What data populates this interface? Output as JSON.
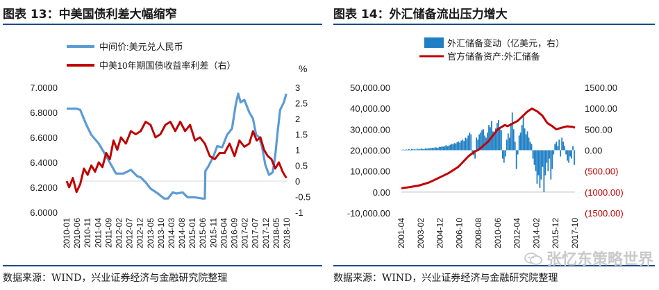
{
  "figures": [
    {
      "title": "图表 13：中美国债利差大幅缩窄",
      "source": "数据来源：WIND，兴业证券经济与金融研究院整理"
    },
    {
      "title": "图表 14：外汇储备流出压力增大",
      "source": "数据来源：WIND，兴业证券经济与金融研究院整理"
    }
  ],
  "watermark": {
    "text": "张忆东策略世界",
    "icon": "wechat-icon"
  },
  "colors": {
    "blue": "#5b9bd5",
    "darkred": "#c00000",
    "bar_blue": "#1f7fc4",
    "rule": "#1c4a8a",
    "axis_text": "#1a1a1a",
    "right_axis_red": "#c00000"
  },
  "chart_data": [
    {
      "type": "line",
      "title": "中美国债利差大幅缩窄",
      "legend": [
        "中间价:美元兑人民币",
        "中美10年期国债收益率利差（右）"
      ],
      "left_axis": {
        "ticks": [
          "7.0000",
          "6.8000",
          "6.6000",
          "6.4000",
          "6.2000",
          "6.0000"
        ],
        "range": [
          6.0,
          7.0
        ]
      },
      "right_axis": {
        "unit": "%",
        "ticks": [
          "3",
          "2.5",
          "2",
          "1.5",
          "1",
          "0.5",
          "0",
          "-0.5",
          "-1"
        ],
        "range": [
          -1,
          3
        ]
      },
      "x_labels": [
        "2010-01",
        "2010-06",
        "2010-11",
        "2011-04",
        "2011-09",
        "2012-02",
        "2012-07",
        "2012-12",
        "2013-05",
        "2013-10",
        "2014-03",
        "2014-08",
        "2015-01",
        "2015-06",
        "2015-11",
        "2016-04",
        "2016-09",
        "2017-02",
        "2017-07",
        "2017-12",
        "2018-05",
        "2018-10"
      ],
      "series": [
        {
          "name": "中间价:美元兑人民币",
          "axis": "left",
          "color": "#5b9bd5",
          "points": [
            [
              2010.0,
              6.83
            ],
            [
              2010.4,
              6.83
            ],
            [
              2010.55,
              6.82
            ],
            [
              2010.8,
              6.7
            ],
            [
              2011.0,
              6.62
            ],
            [
              2011.3,
              6.55
            ],
            [
              2011.6,
              6.45
            ],
            [
              2011.8,
              6.38
            ],
            [
              2012.0,
              6.31
            ],
            [
              2012.3,
              6.31
            ],
            [
              2012.6,
              6.34
            ],
            [
              2012.85,
              6.29
            ],
            [
              2013.0,
              6.28
            ],
            [
              2013.2,
              6.24
            ],
            [
              2013.4,
              6.19
            ],
            [
              2013.7,
              6.15
            ],
            [
              2013.95,
              6.11
            ],
            [
              2014.1,
              6.11
            ],
            [
              2014.3,
              6.16
            ],
            [
              2014.45,
              6.15
            ],
            [
              2014.7,
              6.16
            ],
            [
              2014.9,
              6.12
            ],
            [
              2015.2,
              6.12
            ],
            [
              2015.5,
              6.11
            ],
            [
              2015.6,
              6.11
            ],
            [
              2015.62,
              6.33
            ],
            [
              2015.75,
              6.37
            ],
            [
              2015.95,
              6.45
            ],
            [
              2016.1,
              6.53
            ],
            [
              2016.3,
              6.52
            ],
            [
              2016.5,
              6.62
            ],
            [
              2016.7,
              6.67
            ],
            [
              2016.85,
              6.86
            ],
            [
              2016.95,
              6.95
            ],
            [
              2017.05,
              6.88
            ],
            [
              2017.2,
              6.9
            ],
            [
              2017.4,
              6.8
            ],
            [
              2017.55,
              6.75
            ],
            [
              2017.68,
              6.62
            ],
            [
              2017.8,
              6.6
            ],
            [
              2017.92,
              6.52
            ],
            [
              2018.05,
              6.38
            ],
            [
              2018.2,
              6.3
            ],
            [
              2018.35,
              6.32
            ],
            [
              2018.45,
              6.45
            ],
            [
              2018.55,
              6.65
            ],
            [
              2018.65,
              6.82
            ],
            [
              2018.8,
              6.88
            ],
            [
              2018.9,
              6.95
            ]
          ]
        },
        {
          "name": "中美10年期国债收益率利差（右）",
          "axis": "right",
          "color": "#c00000",
          "points": [
            [
              2010.0,
              0.0
            ],
            [
              2010.1,
              -0.2
            ],
            [
              2010.25,
              0.1
            ],
            [
              2010.4,
              -0.35
            ],
            [
              2010.55,
              -0.1
            ],
            [
              2010.7,
              0.4
            ],
            [
              2010.85,
              0.2
            ],
            [
              2011.0,
              0.5
            ],
            [
              2011.15,
              0.3
            ],
            [
              2011.3,
              0.6
            ],
            [
              2011.45,
              0.45
            ],
            [
              2011.6,
              0.9
            ],
            [
              2011.75,
              0.7
            ],
            [
              2011.9,
              1.3
            ],
            [
              2012.05,
              1.0
            ],
            [
              2012.2,
              1.4
            ],
            [
              2012.4,
              1.2
            ],
            [
              2012.6,
              1.6
            ],
            [
              2012.8,
              1.5
            ],
            [
              2013.0,
              1.6
            ],
            [
              2013.2,
              1.9
            ],
            [
              2013.4,
              1.8
            ],
            [
              2013.6,
              1.4
            ],
            [
              2013.8,
              1.5
            ],
            [
              2014.0,
              1.8
            ],
            [
              2014.2,
              1.9
            ],
            [
              2014.4,
              1.6
            ],
            [
              2014.6,
              1.9
            ],
            [
              2014.8,
              1.6
            ],
            [
              2015.0,
              1.8
            ],
            [
              2015.2,
              1.3
            ],
            [
              2015.4,
              1.4
            ],
            [
              2015.6,
              1.2
            ],
            [
              2015.8,
              0.8
            ],
            [
              2016.0,
              0.7
            ],
            [
              2016.2,
              0.9
            ],
            [
              2016.4,
              0.9
            ],
            [
              2016.6,
              1.2
            ],
            [
              2016.8,
              0.8
            ],
            [
              2017.0,
              1.3
            ],
            [
              2017.2,
              1.1
            ],
            [
              2017.4,
              1.2
            ],
            [
              2017.55,
              1.6
            ],
            [
              2017.7,
              1.3
            ],
            [
              2017.85,
              1.4
            ],
            [
              2018.0,
              1.0
            ],
            [
              2018.15,
              0.8
            ],
            [
              2018.3,
              0.7
            ],
            [
              2018.45,
              0.4
            ],
            [
              2018.6,
              0.6
            ],
            [
              2018.75,
              0.3
            ],
            [
              2018.9,
              0.1
            ]
          ]
        }
      ]
    },
    {
      "type": "bar+line",
      "title": "外汇储备流出压力增大",
      "legend": [
        "外汇储备变动（亿美元，右）",
        "官方储备资产:外汇储备"
      ],
      "left_axis": {
        "ticks": [
          "50,000.00",
          "40,000.00",
          "30,000.00",
          "20,000.00",
          "10,000.00",
          "0.00",
          "-10,000.00"
        ],
        "range": [
          -10000,
          50000
        ]
      },
      "right_axis": {
        "ticks": [
          "1500.00",
          "1000.00",
          "500.00",
          "0.00",
          "(500.00)",
          "(1000.00)",
          "(1500.00)"
        ],
        "range": [
          -1500,
          1500
        ]
      },
      "x_labels": [
        "2001-04",
        "2003-02",
        "2004-12",
        "2006-10",
        "2008-08",
        "2010-06",
        "2012-04",
        "2014-02",
        "2015-12",
        "2017-10"
      ],
      "series": [
        {
          "name": "官方储备资产:外汇储备",
          "axis": "left",
          "color": "#c00000",
          "points": [
            [
              2001.25,
              1850
            ],
            [
              2002.0,
              2300
            ],
            [
              2003.0,
              3100
            ],
            [
              2004.0,
              4500
            ],
            [
              2005.0,
              6700
            ],
            [
              2006.0,
              9000
            ],
            [
              2007.0,
              12000
            ],
            [
              2008.0,
              17000
            ],
            [
              2008.7,
              19500
            ],
            [
              2009.0,
              20000
            ],
            [
              2010.0,
              24000
            ],
            [
              2011.0,
              30000
            ],
            [
              2011.7,
              32000
            ],
            [
              2012.0,
              31500
            ],
            [
              2013.0,
              34000
            ],
            [
              2014.0,
              38500
            ],
            [
              2014.45,
              39900
            ],
            [
              2015.0,
              38500
            ],
            [
              2015.5,
              36500
            ],
            [
              2016.0,
              33000
            ],
            [
              2016.5,
              31500
            ],
            [
              2016.9,
              30000
            ],
            [
              2017.5,
              30800
            ],
            [
              2018.0,
              31400
            ],
            [
              2018.5,
              31200
            ],
            [
              2018.8,
              30800
            ]
          ]
        },
        {
          "name": "外汇储备变动（亿美元，右）",
          "axis": "right",
          "color": "#1f7fc4",
          "type": "bar",
          "x_range": [
            2001.25,
            2018.8
          ],
          "values": [
            10,
            15,
            5,
            20,
            12,
            25,
            8,
            30,
            18,
            22,
            15,
            35,
            20,
            28,
            40,
            25,
            30,
            45,
            38,
            50,
            42,
            55,
            60,
            48,
            70,
            65,
            52,
            80,
            75,
            90,
            85,
            100,
            120,
            95,
            110,
            130,
            150,
            140,
            170,
            160,
            190,
            210,
            180,
            230,
            250,
            220,
            300,
            280,
            350,
            420,
            380,
            -80,
            -120,
            -200,
            300,
            250,
            380,
            420,
            480,
            500,
            350,
            300,
            420,
            600,
            550,
            700,
            450,
            380,
            520,
            650,
            720,
            500,
            480,
            -200,
            -300,
            -150,
            250,
            400,
            300,
            650,
            900,
            500,
            200,
            -450,
            -100,
            350,
            420,
            600,
            800,
            520,
            380,
            450,
            300,
            200,
            150,
            -200,
            -350,
            -500,
            -800,
            -600,
            -900,
            -700,
            -400,
            -1000,
            -600,
            -300,
            -500,
            -200,
            -700,
            -450,
            -100,
            150,
            200,
            100,
            250,
            -150,
            300,
            200,
            100,
            -100,
            -250,
            -300,
            -150,
            -200,
            100,
            -350
          ]
        }
      ]
    }
  ]
}
